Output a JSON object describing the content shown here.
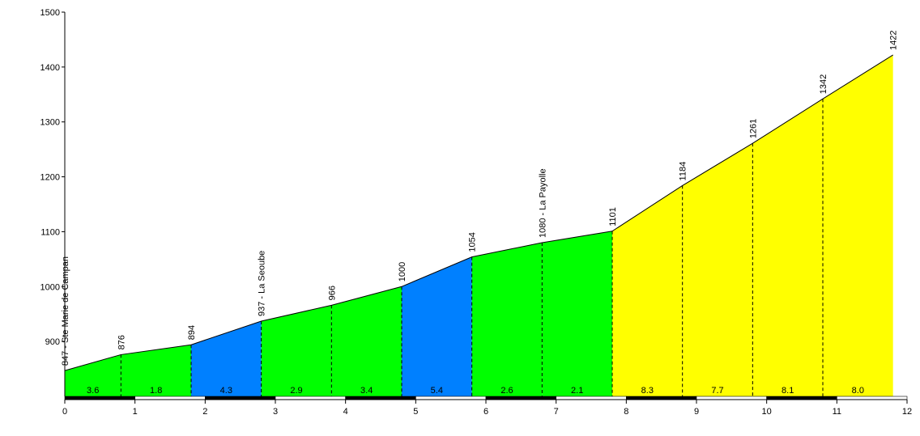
{
  "chart_data": {
    "type": "area",
    "title": "",
    "xlabel": "",
    "ylabel": "",
    "xlim": [
      0,
      12
    ],
    "ylim": [
      800,
      1500
    ],
    "x_ticks": [
      "0",
      "1",
      "2",
      "3",
      "4",
      "5",
      "6",
      "7",
      "8",
      "9",
      "10",
      "11",
      "12"
    ],
    "y_ticks": [
      "900",
      "1000",
      "1100",
      "1200",
      "1300",
      "1400",
      "1500"
    ],
    "grid": false,
    "legend": "none",
    "points": [
      {
        "x": 0,
        "y": 847,
        "label": "847 - Ste Marie de Campan"
      },
      {
        "x": 0.8,
        "y": 876,
        "label": "876"
      },
      {
        "x": 1.8,
        "y": 894,
        "label": "894"
      },
      {
        "x": 2.8,
        "y": 937,
        "label": "937 - La Seoube"
      },
      {
        "x": 3.8,
        "y": 966,
        "label": "966"
      },
      {
        "x": 4.8,
        "y": 1000,
        "label": "1000"
      },
      {
        "x": 5.8,
        "y": 1054,
        "label": "1054"
      },
      {
        "x": 6.8,
        "y": 1080,
        "label": "1080 - La Payolle"
      },
      {
        "x": 7.8,
        "y": 1101,
        "label": "1101"
      },
      {
        "x": 8.8,
        "y": 1184,
        "label": "1184"
      },
      {
        "x": 9.8,
        "y": 1261,
        "label": "1261"
      },
      {
        "x": 10.8,
        "y": 1342,
        "label": "1342"
      },
      {
        "x": 11.8,
        "y": 1422,
        "label": "1422"
      }
    ],
    "segments": [
      {
        "from": 0,
        "to": 0.8,
        "gradient": "3.6",
        "color": "#00ff00"
      },
      {
        "from": 0.8,
        "to": 1.8,
        "gradient": "1.8",
        "color": "#00ff00"
      },
      {
        "from": 1.8,
        "to": 2.8,
        "gradient": "4.3",
        "color": "#0080ff"
      },
      {
        "from": 2.8,
        "to": 3.8,
        "gradient": "2.9",
        "color": "#00ff00"
      },
      {
        "from": 3.8,
        "to": 4.8,
        "gradient": "3.4",
        "color": "#00ff00"
      },
      {
        "from": 4.8,
        "to": 5.8,
        "gradient": "5.4",
        "color": "#0080ff"
      },
      {
        "from": 5.8,
        "to": 6.8,
        "gradient": "2.6",
        "color": "#00ff00"
      },
      {
        "from": 6.8,
        "to": 7.8,
        "gradient": "2.1",
        "color": "#00ff00"
      },
      {
        "from": 7.8,
        "to": 8.8,
        "gradient": "8.3",
        "color": "#ffff00"
      },
      {
        "from": 8.8,
        "to": 9.8,
        "gradient": "7.7",
        "color": "#ffff00"
      },
      {
        "from": 9.8,
        "to": 10.8,
        "gradient": "8.1",
        "color": "#ffff00"
      },
      {
        "from": 10.8,
        "to": 11.8,
        "gradient": "8.0",
        "color": "#ffff00"
      }
    ],
    "km_bar": [
      {
        "from": 0,
        "to": 1,
        "color": "#000000"
      },
      {
        "from": 1,
        "to": 2,
        "color": "#ffffff"
      },
      {
        "from": 2,
        "to": 3,
        "color": "#000000"
      },
      {
        "from": 3,
        "to": 4,
        "color": "#ffffff"
      },
      {
        "from": 4,
        "to": 5,
        "color": "#000000"
      },
      {
        "from": 5,
        "to": 6,
        "color": "#ffffff"
      },
      {
        "from": 6,
        "to": 7,
        "color": "#000000"
      },
      {
        "from": 7,
        "to": 8,
        "color": "#ffffff"
      },
      {
        "from": 8,
        "to": 9,
        "color": "#000000"
      },
      {
        "from": 9,
        "to": 10,
        "color": "#ffffff"
      },
      {
        "from": 10,
        "to": 11,
        "color": "#000000"
      },
      {
        "from": 11,
        "to": 12,
        "color": "#ffffff"
      }
    ]
  }
}
